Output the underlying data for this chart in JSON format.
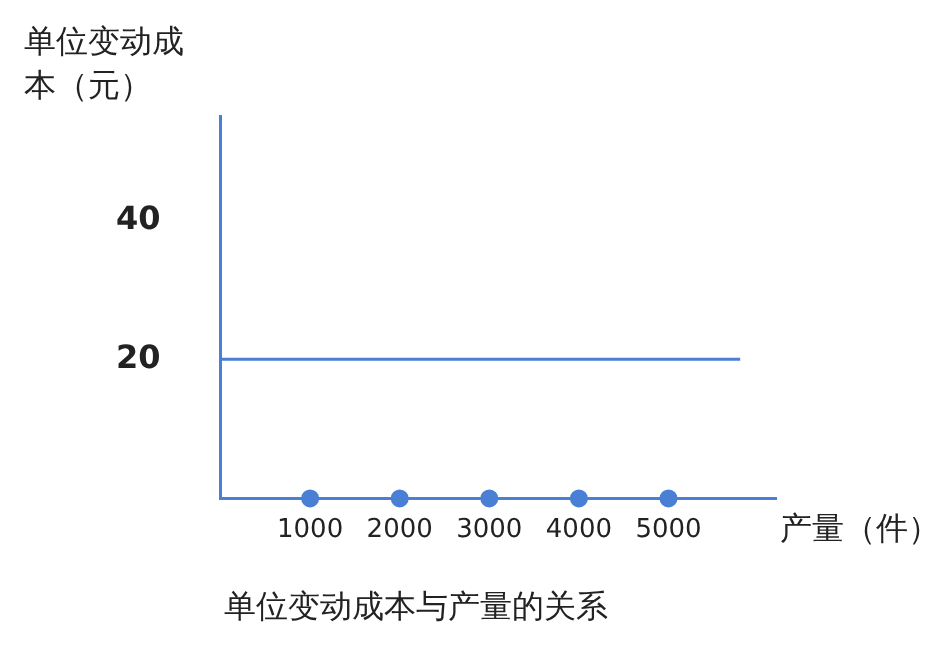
{
  "chart_data": {
    "type": "line",
    "title": "单位变动成本与产量的关系",
    "xlabel": "产量（件）",
    "ylabel": "单位变动成本（元）",
    "xlim": [
      0,
      6200
    ],
    "xticks": [
      1000,
      2000,
      3000,
      4000,
      5000
    ],
    "ylim": [
      0,
      55
    ],
    "yticks": [
      20,
      40
    ],
    "grid": false,
    "legend": false,
    "series": [
      {
        "color": "#4a7fd6",
        "x": [
          0,
          5800
        ],
        "values": [
          20,
          20
        ],
        "marker": "none"
      },
      {
        "type": "scatter",
        "color": "#4a7fd6",
        "x": [
          1000,
          2000,
          3000,
          4000,
          5000
        ],
        "values": [
          0,
          0,
          0,
          0,
          0
        ],
        "marker": "circle"
      }
    ]
  }
}
